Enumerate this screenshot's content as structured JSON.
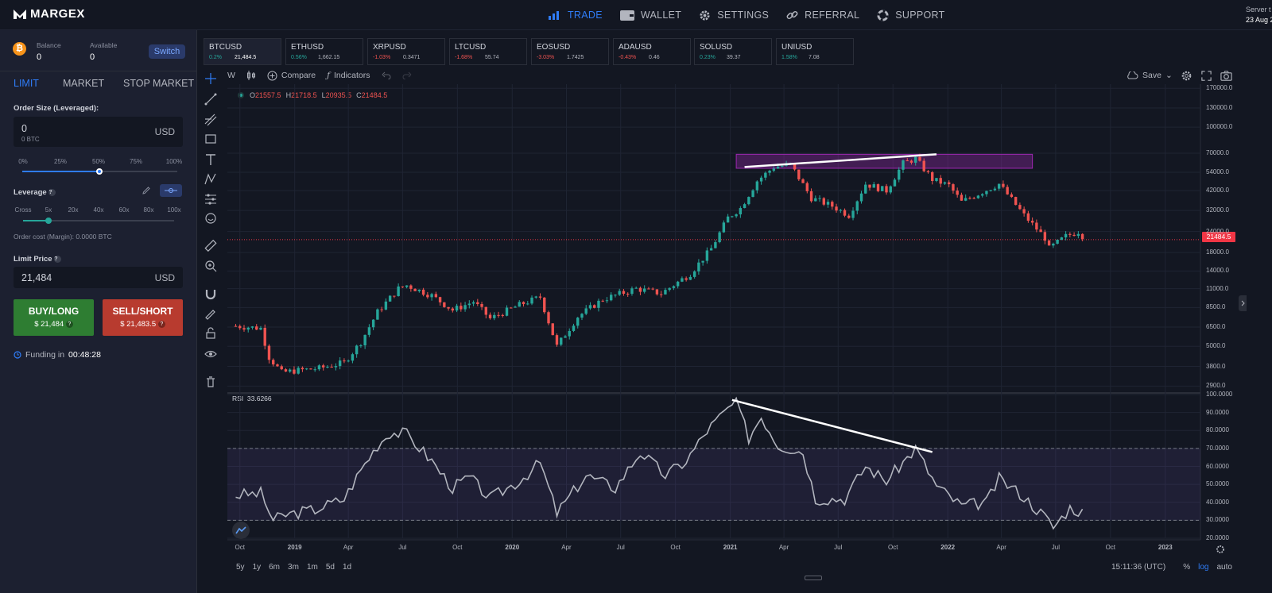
{
  "brand": {
    "name": "MARGEX"
  },
  "nav": [
    {
      "label": "TRADE",
      "icon": "bar-chart-icon",
      "active": true
    },
    {
      "label": "WALLET",
      "icon": "wallet-icon",
      "active": false
    },
    {
      "label": "SETTINGS",
      "icon": "gear-icon",
      "active": false
    },
    {
      "label": "REFERRAL",
      "icon": "link-icon",
      "active": false
    },
    {
      "label": "SUPPORT",
      "icon": "lifebuoy-icon",
      "active": false
    }
  ],
  "server": {
    "label": "Server t",
    "date": "23 Aug 2"
  },
  "account": {
    "balance_label": "Balance",
    "balance_value": "0",
    "available_label": "Available",
    "available_value": "0",
    "switch_label": "Switch"
  },
  "order_tabs": [
    {
      "label": "LIMIT",
      "active": true
    },
    {
      "label": "MARKET",
      "active": false
    },
    {
      "label": "STOP MARKET",
      "active": false
    }
  ],
  "order_size": {
    "label": "Order Size (Leveraged):",
    "value": "0",
    "sub": "0 BTC",
    "unit": "USD",
    "ticks": [
      "0%",
      "25%",
      "50%",
      "75%",
      "100%"
    ],
    "percent": 50
  },
  "leverage": {
    "label": "Leverage",
    "help": "?",
    "ticks": [
      "Cross",
      "5x",
      "20x",
      "40x",
      "60x",
      "80x",
      "100x"
    ],
    "selected": "5x",
    "cost_label": "Order cost (Margin): 0.0000 BTC"
  },
  "limit_price": {
    "label": "Limit Price",
    "help": "?",
    "value": "21,484",
    "unit": "USD"
  },
  "buy": {
    "label": "BUY/LONG",
    "price": "$ 21,484",
    "help": "?"
  },
  "sell": {
    "label": "SELL/SHORT",
    "price": "$ 21,483.5",
    "help": "?"
  },
  "funding": {
    "label": "Funding in",
    "value": "00:48:28"
  },
  "symbols": [
    {
      "name": "BTCUSD",
      "change": "0.2%",
      "price": "21,484.5",
      "dir": "up",
      "active": true
    },
    {
      "name": "ETHUSD",
      "change": "0.56%",
      "price": "1,662.15",
      "dir": "up",
      "active": false
    },
    {
      "name": "XRPUSD",
      "change": "-1.03%",
      "price": "0.3471",
      "dir": "down",
      "active": false
    },
    {
      "name": "LTCUSD",
      "change": "-1.68%",
      "price": "55.74",
      "dir": "down",
      "active": false
    },
    {
      "name": "EOSUSD",
      "change": "-3.03%",
      "price": "1.7425",
      "dir": "down",
      "active": false
    },
    {
      "name": "ADAUSD",
      "change": "-0.43%",
      "price": "0.46",
      "dir": "down",
      "active": false
    },
    {
      "name": "SOLUSD",
      "change": "0.23%",
      "price": "39.37",
      "dir": "up",
      "active": false
    },
    {
      "name": "UNIUSD",
      "change": "1.58%",
      "price": "7.08",
      "dir": "up",
      "active": false
    }
  ],
  "chart_toolbar": {
    "interval": "W",
    "compare": "Compare",
    "indicators": "Indicators",
    "save": "Save"
  },
  "ohlc": {
    "o_label": "O",
    "o": "21557.5",
    "h_label": "H",
    "h": "21718.5",
    "l_label": "L",
    "l": "20935.5",
    "c_label": "C",
    "c": "21484.5"
  },
  "rsi": {
    "label": "RSI",
    "value": "33.6266"
  },
  "last_price": "21484.5",
  "time": "15:11:36 (UTC)",
  "ranges": [
    "5y",
    "1y",
    "6m",
    "3m",
    "1m",
    "5d",
    "1d"
  ],
  "scale_opts": [
    "%",
    "log",
    "auto"
  ],
  "chart_data": [
    {
      "type": "candlestick",
      "title": "BTCUSD",
      "scale": "log",
      "y_ticks": [
        "170000.0",
        "130000.0",
        "100000.0",
        "70000.0",
        "54000.0",
        "42000.0",
        "32000.0",
        "24000.0",
        "18000.0",
        "14000.0",
        "11000.0",
        "8500.0",
        "6500.0",
        "5000.0",
        "3800.0",
        "2900.0"
      ],
      "x_ticks": [
        "Oct",
        "2019",
        "Apr",
        "Jul",
        "Oct",
        "2020",
        "Apr",
        "Jul",
        "Oct",
        "2021",
        "Apr",
        "Jul",
        "Oct",
        "2022",
        "Apr",
        "Jul",
        "Oct",
        "2023"
      ],
      "up_color": "#26a69a",
      "down_color": "#ef5350",
      "last_price": 21484.5,
      "price_path": [
        [
          "2018-09-24",
          6600
        ],
        [
          "2018-11-05",
          6400
        ],
        [
          "2018-11-19",
          4300
        ],
        [
          "2018-12-10",
          3500
        ],
        [
          "2019-01-07",
          3600
        ],
        [
          "2019-02-11",
          3700
        ],
        [
          "2019-03-25",
          4000
        ],
        [
          "2019-04-22",
          5300
        ],
        [
          "2019-05-20",
          8000
        ],
        [
          "2019-06-24",
          11000
        ],
        [
          "2019-07-08",
          11500
        ],
        [
          "2019-08-19",
          10000
        ],
        [
          "2019-09-23",
          8200
        ],
        [
          "2019-10-28",
          9200
        ],
        [
          "2019-11-25",
          7300
        ],
        [
          "2020-01-13",
          8800
        ],
        [
          "2020-02-17",
          9800
        ],
        [
          "2020-03-16",
          5000
        ],
        [
          "2020-04-20",
          7500
        ],
        [
          "2020-06-01",
          9500
        ],
        [
          "2020-07-27",
          11000
        ],
        [
          "2020-09-07",
          10300
        ],
        [
          "2020-10-26",
          13500
        ],
        [
          "2020-11-30",
          19000
        ],
        [
          "2020-12-28",
          29000
        ],
        [
          "2021-01-18",
          33000
        ],
        [
          "2021-02-15",
          48000
        ],
        [
          "2021-03-15",
          58000
        ],
        [
          "2021-04-12",
          60000
        ],
        [
          "2021-05-17",
          38000
        ],
        [
          "2021-06-21",
          34000
        ],
        [
          "2021-07-19",
          30000
        ],
        [
          "2021-08-16",
          46000
        ],
        [
          "2021-09-20",
          42000
        ],
        [
          "2021-10-18",
          61000
        ],
        [
          "2021-11-08",
          65000
        ],
        [
          "2021-12-06",
          49000
        ],
        [
          "2022-01-03",
          45000
        ],
        [
          "2022-01-24",
          36000
        ],
        [
          "2022-03-28",
          46000
        ],
        [
          "2022-05-09",
          30000
        ],
        [
          "2022-06-13",
          22000
        ],
        [
          "2022-06-20",
          19000
        ],
        [
          "2022-07-18",
          22500
        ],
        [
          "2022-08-08",
          24000
        ],
        [
          "2022-08-22",
          21484.5
        ]
      ],
      "annotations": [
        {
          "type": "trendline",
          "from": [
            "2021-01-25",
            58000
          ],
          "to": [
            "2021-12-13",
            69000
          ],
          "color": "#ffffff"
        },
        {
          "type": "rectangle",
          "from": [
            "2021-01-11",
            69000
          ],
          "to": [
            "2022-05-23",
            57000
          ],
          "color": "#9c27b0"
        },
        {
          "type": "hline",
          "value": 21484.5,
          "color": "#f23645"
        }
      ]
    },
    {
      "type": "line",
      "title": "RSI",
      "ylim": [
        20,
        100
      ],
      "y_ticks": [
        "100.0000",
        "90.0000",
        "80.0000",
        "70.0000",
        "60.0000",
        "50.0000",
        "40.0000",
        "30.0000",
        "20.0000"
      ],
      "bands": [
        70,
        30
      ],
      "line_color": "#b2b5be",
      "series": [
        {
          "name": "RSI",
          "values": [
            [
              "2018-09-24",
              44
            ],
            [
              "2018-11-05",
              45
            ],
            [
              "2018-11-26",
              30
            ],
            [
              "2018-12-17",
              33
            ],
            [
              "2019-02-04",
              36
            ],
            [
              "2019-03-25",
              42
            ],
            [
              "2019-04-22",
              58
            ],
            [
              "2019-05-20",
              72
            ],
            [
              "2019-06-10",
              79
            ],
            [
              "2019-07-08",
              78
            ],
            [
              "2019-08-19",
              63
            ],
            [
              "2019-09-23",
              48
            ],
            [
              "2019-10-21",
              54
            ],
            [
              "2019-11-25",
              42
            ],
            [
              "2020-01-13",
              52
            ],
            [
              "2020-02-17",
              62
            ],
            [
              "2020-03-16",
              34
            ],
            [
              "2020-05-04",
              55
            ],
            [
              "2020-06-22",
              48
            ],
            [
              "2020-08-03",
              68
            ],
            [
              "2020-09-14",
              55
            ],
            [
              "2020-10-19",
              63
            ],
            [
              "2020-11-23",
              80
            ],
            [
              "2020-12-28",
              92
            ],
            [
              "2021-01-11",
              96
            ],
            [
              "2021-02-01",
              76
            ],
            [
              "2021-02-22",
              88
            ],
            [
              "2021-03-22",
              72
            ],
            [
              "2021-05-03",
              68
            ],
            [
              "2021-05-24",
              42
            ],
            [
              "2021-07-12",
              42
            ],
            [
              "2021-08-16",
              60
            ],
            [
              "2021-09-20",
              52
            ],
            [
              "2021-11-08",
              70
            ],
            [
              "2021-12-13",
              49
            ],
            [
              "2022-01-24",
              38
            ],
            [
              "2022-03-07",
              40
            ],
            [
              "2022-03-28",
              53
            ],
            [
              "2022-05-02",
              45
            ],
            [
              "2022-06-13",
              32
            ],
            [
              "2022-06-27",
              26
            ],
            [
              "2022-07-25",
              37
            ],
            [
              "2022-08-22",
              33.6266
            ]
          ]
        }
      ],
      "annotations": [
        {
          "type": "trendline",
          "from": [
            "2021-01-04",
            97
          ],
          "to": [
            "2021-12-06",
            68
          ],
          "color": "#ffffff"
        }
      ]
    }
  ]
}
